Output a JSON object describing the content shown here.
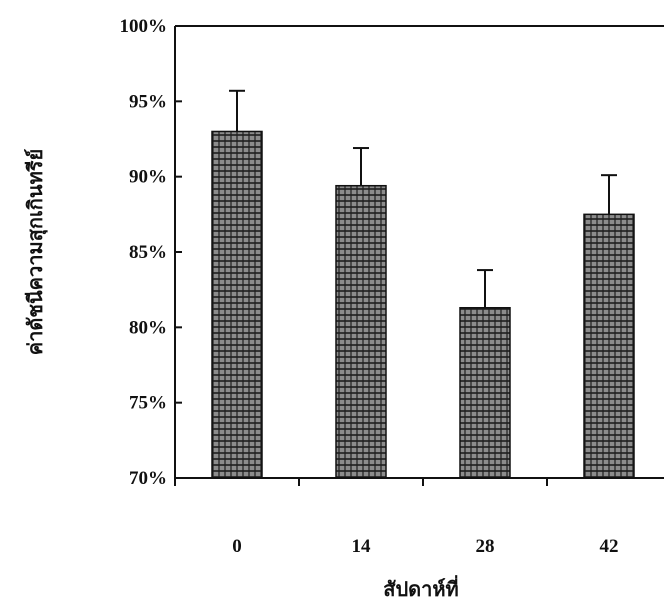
{
  "chart_data": {
    "type": "bar",
    "title": "",
    "xlabel": "สัปดาห์ที่",
    "ylabel": "ค่าดัชนีความสุกเกินทรีย์",
    "categories": [
      "0",
      "14",
      "28",
      "42"
    ],
    "values": [
      93.0,
      89.4,
      81.3,
      87.5
    ],
    "errors": [
      2.7,
      2.5,
      2.5,
      2.6
    ],
    "ylim": [
      70,
      100
    ],
    "yticks": [
      70,
      75,
      80,
      85,
      90,
      95,
      100
    ],
    "ytick_labels": [
      "70%",
      "75%",
      "80%",
      "85%",
      "90%",
      "95%",
      "100%"
    ],
    "grid": false,
    "legend": "none",
    "bar_color": "#8c8c8c",
    "bar_pattern_color": "#1e1e1e",
    "axis_color": "#111111"
  }
}
